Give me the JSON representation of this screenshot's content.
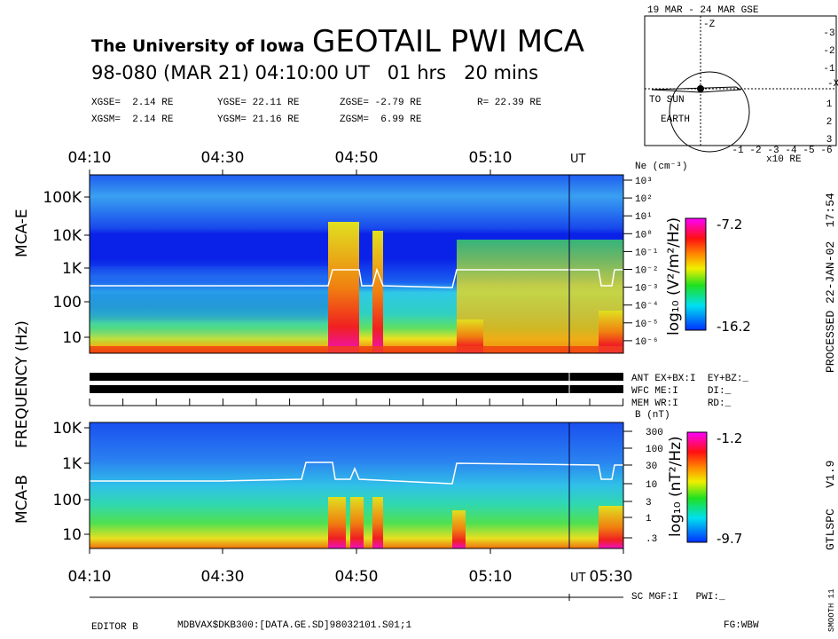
{
  "header": {
    "institution": "The University of Iowa",
    "title": "GEOTAIL PWI MCA",
    "subtitle": "98-080 (MAR 21) 04:10:00 UT   01 hrs   20 mins"
  },
  "coordinates": {
    "gse": [
      "XGSE=  2.14 RE",
      "YGSE= 22.11 RE",
      "ZGSE= -2.79 RE",
      "R= 22.39 RE"
    ],
    "gsm": [
      "XGSM=  2.14 RE",
      "YGSM= 21.16 RE",
      "ZGSM=  6.99 RE"
    ]
  },
  "orbit": {
    "title": "19 MAR - 24 MAR  GSE",
    "sun_label": "TO SUN",
    "earth_label": "EARTH",
    "unit": "x10 RE",
    "x_axis": "-X",
    "z_axis": "-Z",
    "x_ticks": [
      "-1",
      "-2",
      "-3",
      "-4",
      "-5",
      "-6"
    ],
    "z_ticks": [
      "-3",
      "-2",
      "-1",
      "1",
      "2",
      "3"
    ]
  },
  "top_time_axis": {
    "ticks": [
      "04:10",
      "04:30",
      "04:50",
      "05:10"
    ],
    "unit": "UT"
  },
  "mca_e": {
    "label": "MCA-E",
    "freq_ticks": [
      "100K",
      "10K",
      "1K",
      "100",
      "10"
    ],
    "density_label": "Ne (cm⁻³)",
    "density_ticks": [
      "10³",
      "10²",
      "10¹",
      "10⁰",
      "10⁻¹",
      "10⁻²",
      "10⁻³",
      "10⁻⁴",
      "10⁻⁵",
      "10⁻⁶"
    ],
    "colorbar": {
      "label": "log₁₀ (V²/m²/Hz)",
      "max": "-7.2",
      "min": "-16.2"
    }
  },
  "frequency_label": "FREQUENCY (Hz)",
  "status": [
    "ANT EX+BX:I  EY+BZ:_",
    "WFC ME:I     DI:_",
    "MEM WR:I     RD:_"
  ],
  "mca_b": {
    "label": "MCA-B",
    "freq_ticks": [
      "10K",
      "1K",
      "100",
      "10"
    ],
    "field_label": "B (nT)",
    "field_ticks": [
      "300",
      "100",
      "30",
      "10",
      "3",
      "1",
      ".3"
    ],
    "colorbar": {
      "label": "log₁₀ (nT²/Hz)",
      "max": "-1.2",
      "min": "-9.7"
    }
  },
  "bottom_time_axis": {
    "ticks": [
      "04:10",
      "04:30",
      "04:50",
      "05:10",
      "05:30"
    ],
    "unit": "UT"
  },
  "sc_status": "SC MGF:I   PWI:_",
  "footer": {
    "editor": "EDITOR B",
    "file": "MDBVAX$DKB300:[DATA.GE.SD]98032101.S01;1",
    "fg": "FG:WBW"
  },
  "side": {
    "processed": "PROCESSED 22-JAN-02  17:54",
    "version": "GTLSPC   V1.9",
    "smooth": "SMOOTH 11"
  }
}
